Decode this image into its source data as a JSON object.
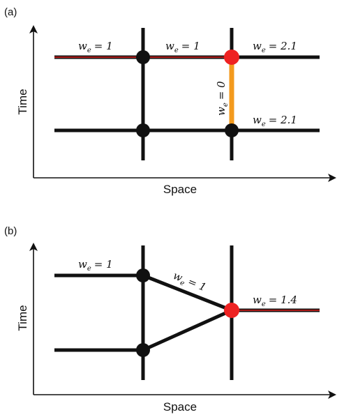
{
  "colors": {
    "line": "#111111",
    "highlight": "#e0201c",
    "orange": "#f39a1e",
    "node": "#111111",
    "node_highlight": "#ee2222"
  },
  "panel_a": {
    "label": "(a)",
    "x_axis_label": "Space",
    "y_axis_label": "Time",
    "edges": [
      {
        "symbol": "w",
        "subscript": "e",
        "value": "= 1"
      },
      {
        "symbol": "w",
        "subscript": "e",
        "value": "= 1"
      },
      {
        "symbol": "w",
        "subscript": "e",
        "value": "= 2.1"
      },
      {
        "symbol": "w",
        "subscript": "e",
        "value": "= 0"
      },
      {
        "symbol": "w",
        "subscript": "e",
        "value": "= 2.1"
      }
    ]
  },
  "panel_b": {
    "label": "(b)",
    "x_axis_label": "Space",
    "y_axis_label": "Time",
    "edges": [
      {
        "symbol": "w",
        "subscript": "e",
        "value": "= 1"
      },
      {
        "symbol": "w",
        "subscript": "e",
        "value": "= 1"
      },
      {
        "symbol": "w",
        "subscript": "e",
        "value": "= 1.4"
      }
    ]
  }
}
